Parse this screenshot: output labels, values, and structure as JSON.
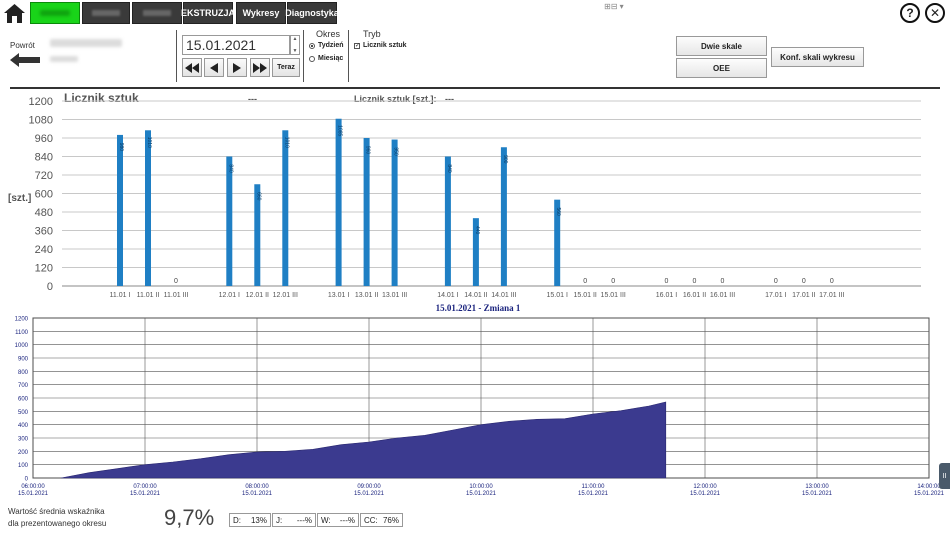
{
  "nav": {
    "tabs_blurred": [
      "",
      "",
      ""
    ],
    "ekstruzja": "EKSTRUZJA",
    "wykresy": "Wykresy",
    "diagnostyka": "Diagnostyka",
    "mini_icons": "⊞⊟ ▾",
    "help": "?",
    "close": "✕"
  },
  "controls": {
    "back_label": "Powrót",
    "date": "15.01.2021",
    "teraz": "Teraz",
    "okres_title": "Okres",
    "okres_tydzien": "Tydzień",
    "okres_miesiac": "Miesiąc",
    "tryb_title": "Tryb",
    "tryb_licznik": "Licznik sztuk",
    "btn_dwie_skale": "Dwie skale",
    "btn_oee": "OEE",
    "btn_konf": "Konf. skali wykresu"
  },
  "top_chart": {
    "title": "Licznik sztuk",
    "title_value": "---",
    "summary_label": "Licznik sztuk [szt.]:",
    "summary_value": "---",
    "ylabel": "[szt.]"
  },
  "bottom_chart": {
    "title": "15.01.2021 - Zmiana 1"
  },
  "footer": {
    "label_line1": "Wartość średnia wskaźnika",
    "label_line2": "dla prezentowanego okresu",
    "big_value": "9,7%",
    "kpis": [
      {
        "label": "D:",
        "value": "13%"
      },
      {
        "label": "J:",
        "value": "---%"
      },
      {
        "label": "W:",
        "value": "---%"
      },
      {
        "label": "CC:",
        "value": "76%"
      }
    ],
    "side_tab": "II"
  },
  "chart_data": [
    {
      "type": "bar",
      "title": "Licznik sztuk",
      "ylabel": "[szt.]",
      "ylim": [
        0,
        1200
      ],
      "yticks": [
        0,
        120,
        240,
        360,
        480,
        600,
        720,
        840,
        960,
        1080,
        1200
      ],
      "grid": true,
      "color": "#1f7fc4",
      "categories": [
        "11.01 I",
        "11.01 II",
        "11.01 III",
        "12.01 I",
        "12.01 II",
        "12.01 III",
        "13.01 I",
        "13.01 II",
        "13.01 III",
        "14.01 I",
        "14.01 II",
        "14.01 III",
        "15.01 I",
        "15.01 II",
        "15.01 III",
        "16.01 I",
        "16.01 II",
        "16.01 III",
        "17.01 I",
        "17.01 II",
        "17.01 III"
      ],
      "subbars": [
        [
          980,
          1010,
          0
        ],
        [
          840,
          660,
          1010
        ],
        [
          1085,
          960,
          950
        ],
        [
          840,
          440,
          900
        ],
        [
          560,
          0,
          0
        ],
        [
          0,
          0,
          0
        ],
        [
          0,
          0,
          0
        ]
      ],
      "bar_labels": [
        [
          "980",
          "1010",
          "0"
        ],
        [
          "840",
          "660",
          "1010"
        ],
        [
          "1085",
          "960",
          "950"
        ],
        [
          "840",
          "440",
          "900"
        ],
        [
          "560",
          "0",
          "0"
        ],
        [
          "0",
          "0",
          "0"
        ],
        [
          "0",
          "0",
          "0"
        ]
      ],
      "x_group_labels": [
        [
          "11.01 I",
          "11.01 II",
          "11.01 III"
        ],
        [
          "12.01 I",
          "12.01 II",
          "12.01 III"
        ],
        [
          "13.01 I",
          "13.01 II",
          "13.01 III"
        ],
        [
          "14.01 I",
          "14.01 II",
          "14.01 III"
        ],
        [
          "15.01 I",
          "15.01 II",
          "15.01 III"
        ],
        [
          "16.01 I",
          "16.01 II",
          "16.01 III"
        ],
        [
          "17.01 I",
          "17.01 II",
          "17.01 III"
        ]
      ]
    },
    {
      "type": "area",
      "title": "15.01.2021 - Zmiana 1",
      "ylim": [
        0,
        1200
      ],
      "yticks": [
        0,
        100,
        200,
        300,
        400,
        500,
        600,
        700,
        800,
        900,
        1000,
        1100,
        1200
      ],
      "grid": true,
      "color": "#3b3a8f",
      "x_ticks": [
        [
          "06:00:00",
          "15.01.2021"
        ],
        [
          "07:00:00",
          "15.01.2021"
        ],
        [
          "08:00:00",
          "15.01.2021"
        ],
        [
          "09:00:00",
          "15.01.2021"
        ],
        [
          "10:00:00",
          "15.01.2021"
        ],
        [
          "11:00:00",
          "15.01.2021"
        ],
        [
          "12:00:00",
          "15.01.2021"
        ],
        [
          "13:00:00",
          "15.01.2021"
        ],
        [
          "14:00:00",
          "15.01.2021"
        ]
      ],
      "xlim_hours": [
        6,
        14
      ],
      "points_hours": [
        [
          6.25,
          0
        ],
        [
          6.5,
          40
        ],
        [
          6.75,
          70
        ],
        [
          7.0,
          100
        ],
        [
          7.25,
          120
        ],
        [
          7.5,
          145
        ],
        [
          7.75,
          175
        ],
        [
          8.0,
          195
        ],
        [
          8.25,
          200
        ],
        [
          8.5,
          215
        ],
        [
          8.75,
          250
        ],
        [
          9.0,
          270
        ],
        [
          9.25,
          300
        ],
        [
          9.5,
          320
        ],
        [
          9.75,
          360
        ],
        [
          10.0,
          400
        ],
        [
          10.25,
          425
        ],
        [
          10.5,
          440
        ],
        [
          10.75,
          445
        ],
        [
          11.0,
          480
        ],
        [
          11.25,
          505
        ],
        [
          11.5,
          540
        ],
        [
          11.65,
          570
        ]
      ]
    }
  ]
}
